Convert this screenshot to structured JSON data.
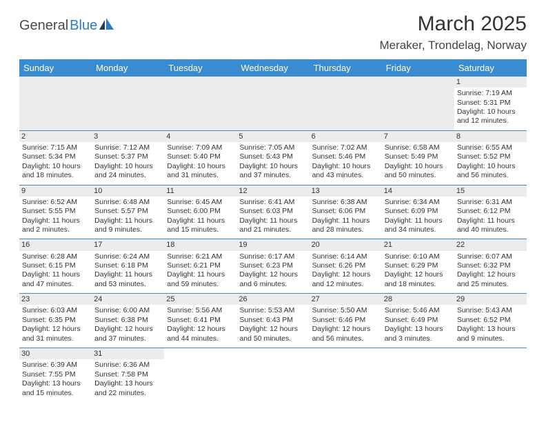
{
  "logo": {
    "textDark": "General",
    "textBlue": "Blue"
  },
  "title": "March 2025",
  "location": "Meraker, Trondelag, Norway",
  "colors": {
    "headerBg": "#3b8bd0",
    "headerText": "#ffffff",
    "dayStripe": "#ececec",
    "ruleColor": "#3b8bd0",
    "bodyText": "#333333",
    "logoBlue": "#2d7bc0",
    "logoDark": "#4a4a4a"
  },
  "weekdays": [
    "Sunday",
    "Monday",
    "Tuesday",
    "Wednesday",
    "Thursday",
    "Friday",
    "Saturday"
  ],
  "rows": [
    [
      null,
      null,
      null,
      null,
      null,
      null,
      {
        "n": "1",
        "sr": "Sunrise: 7:19 AM",
        "ss": "Sunset: 5:31 PM",
        "dl": "Daylight: 10 hours and 12 minutes."
      }
    ],
    [
      {
        "n": "2",
        "sr": "Sunrise: 7:15 AM",
        "ss": "Sunset: 5:34 PM",
        "dl": "Daylight: 10 hours and 18 minutes."
      },
      {
        "n": "3",
        "sr": "Sunrise: 7:12 AM",
        "ss": "Sunset: 5:37 PM",
        "dl": "Daylight: 10 hours and 24 minutes."
      },
      {
        "n": "4",
        "sr": "Sunrise: 7:09 AM",
        "ss": "Sunset: 5:40 PM",
        "dl": "Daylight: 10 hours and 31 minutes."
      },
      {
        "n": "5",
        "sr": "Sunrise: 7:05 AM",
        "ss": "Sunset: 5:43 PM",
        "dl": "Daylight: 10 hours and 37 minutes."
      },
      {
        "n": "6",
        "sr": "Sunrise: 7:02 AM",
        "ss": "Sunset: 5:46 PM",
        "dl": "Daylight: 10 hours and 43 minutes."
      },
      {
        "n": "7",
        "sr": "Sunrise: 6:58 AM",
        "ss": "Sunset: 5:49 PM",
        "dl": "Daylight: 10 hours and 50 minutes."
      },
      {
        "n": "8",
        "sr": "Sunrise: 6:55 AM",
        "ss": "Sunset: 5:52 PM",
        "dl": "Daylight: 10 hours and 56 minutes."
      }
    ],
    [
      {
        "n": "9",
        "sr": "Sunrise: 6:52 AM",
        "ss": "Sunset: 5:55 PM",
        "dl": "Daylight: 11 hours and 2 minutes."
      },
      {
        "n": "10",
        "sr": "Sunrise: 6:48 AM",
        "ss": "Sunset: 5:57 PM",
        "dl": "Daylight: 11 hours and 9 minutes."
      },
      {
        "n": "11",
        "sr": "Sunrise: 6:45 AM",
        "ss": "Sunset: 6:00 PM",
        "dl": "Daylight: 11 hours and 15 minutes."
      },
      {
        "n": "12",
        "sr": "Sunrise: 6:41 AM",
        "ss": "Sunset: 6:03 PM",
        "dl": "Daylight: 11 hours and 21 minutes."
      },
      {
        "n": "13",
        "sr": "Sunrise: 6:38 AM",
        "ss": "Sunset: 6:06 PM",
        "dl": "Daylight: 11 hours and 28 minutes."
      },
      {
        "n": "14",
        "sr": "Sunrise: 6:34 AM",
        "ss": "Sunset: 6:09 PM",
        "dl": "Daylight: 11 hours and 34 minutes."
      },
      {
        "n": "15",
        "sr": "Sunrise: 6:31 AM",
        "ss": "Sunset: 6:12 PM",
        "dl": "Daylight: 11 hours and 40 minutes."
      }
    ],
    [
      {
        "n": "16",
        "sr": "Sunrise: 6:28 AM",
        "ss": "Sunset: 6:15 PM",
        "dl": "Daylight: 11 hours and 47 minutes."
      },
      {
        "n": "17",
        "sr": "Sunrise: 6:24 AM",
        "ss": "Sunset: 6:18 PM",
        "dl": "Daylight: 11 hours and 53 minutes."
      },
      {
        "n": "18",
        "sr": "Sunrise: 6:21 AM",
        "ss": "Sunset: 6:21 PM",
        "dl": "Daylight: 11 hours and 59 minutes."
      },
      {
        "n": "19",
        "sr": "Sunrise: 6:17 AM",
        "ss": "Sunset: 6:23 PM",
        "dl": "Daylight: 12 hours and 6 minutes."
      },
      {
        "n": "20",
        "sr": "Sunrise: 6:14 AM",
        "ss": "Sunset: 6:26 PM",
        "dl": "Daylight: 12 hours and 12 minutes."
      },
      {
        "n": "21",
        "sr": "Sunrise: 6:10 AM",
        "ss": "Sunset: 6:29 PM",
        "dl": "Daylight: 12 hours and 18 minutes."
      },
      {
        "n": "22",
        "sr": "Sunrise: 6:07 AM",
        "ss": "Sunset: 6:32 PM",
        "dl": "Daylight: 12 hours and 25 minutes."
      }
    ],
    [
      {
        "n": "23",
        "sr": "Sunrise: 6:03 AM",
        "ss": "Sunset: 6:35 PM",
        "dl": "Daylight: 12 hours and 31 minutes."
      },
      {
        "n": "24",
        "sr": "Sunrise: 6:00 AM",
        "ss": "Sunset: 6:38 PM",
        "dl": "Daylight: 12 hours and 37 minutes."
      },
      {
        "n": "25",
        "sr": "Sunrise: 5:56 AM",
        "ss": "Sunset: 6:41 PM",
        "dl": "Daylight: 12 hours and 44 minutes."
      },
      {
        "n": "26",
        "sr": "Sunrise: 5:53 AM",
        "ss": "Sunset: 6:43 PM",
        "dl": "Daylight: 12 hours and 50 minutes."
      },
      {
        "n": "27",
        "sr": "Sunrise: 5:50 AM",
        "ss": "Sunset: 6:46 PM",
        "dl": "Daylight: 12 hours and 56 minutes."
      },
      {
        "n": "28",
        "sr": "Sunrise: 5:46 AM",
        "ss": "Sunset: 6:49 PM",
        "dl": "Daylight: 13 hours and 3 minutes."
      },
      {
        "n": "29",
        "sr": "Sunrise: 5:43 AM",
        "ss": "Sunset: 6:52 PM",
        "dl": "Daylight: 13 hours and 9 minutes."
      }
    ],
    [
      {
        "n": "30",
        "sr": "Sunrise: 6:39 AM",
        "ss": "Sunset: 7:55 PM",
        "dl": "Daylight: 13 hours and 15 minutes."
      },
      {
        "n": "31",
        "sr": "Sunrise: 6:36 AM",
        "ss": "Sunset: 7:58 PM",
        "dl": "Daylight: 13 hours and 22 minutes."
      },
      null,
      null,
      null,
      null,
      null
    ]
  ]
}
